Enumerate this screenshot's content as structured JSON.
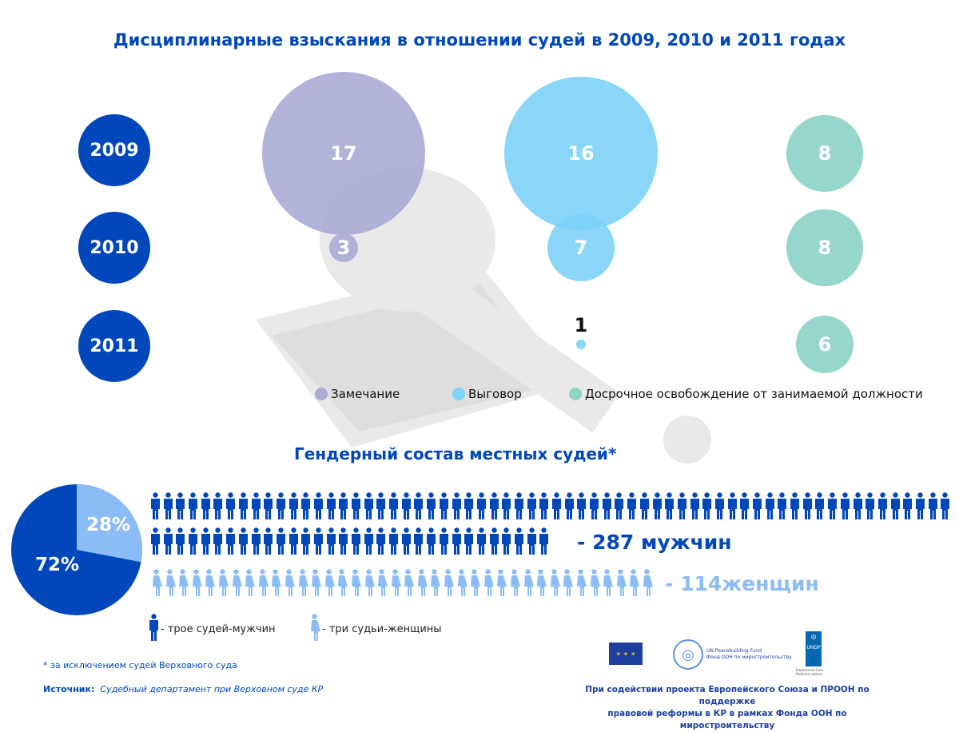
{
  "title": "Дисциплинарные взыскания в отношении судей в 2009, 2010 и 2011 годах",
  "colors": {
    "year": "#0047bb",
    "zamechanie": "#a9acd4",
    "vygovor": "#7fd3f7",
    "dosrochnoe": "#8dd3c7",
    "men": "#0047bb",
    "women": "#8cbcf5"
  },
  "chart_data": [
    {
      "type": "bubble",
      "title": "Дисциплинарные взыскания в отношении судей в 2009, 2010 и 2011 годах",
      "years": [
        "2009",
        "2010",
        "2011"
      ],
      "series": [
        {
          "name": "Замечание",
          "values": [
            17,
            3,
            null
          ]
        },
        {
          "name": "Выговор",
          "values": [
            16,
            7,
            1
          ]
        },
        {
          "name": "Досрочное освобождение от занимаемой должности",
          "values": [
            8,
            8,
            6
          ]
        }
      ],
      "legend": "bottom"
    },
    {
      "type": "pie",
      "title": "Гендерный состав местных судей*",
      "categories": [
        "мужчины",
        "женщины"
      ],
      "values": [
        72,
        28
      ],
      "labels": [
        "72%",
        "28%"
      ]
    }
  ],
  "gender": {
    "men_label": "- 287 мужчин",
    "women_label": "- 114женщин",
    "men_icons": 96,
    "women_icons": 38,
    "legend_men": "- трое судей-мужчин",
    "legend_women": "- три судьи-женщины"
  },
  "footnote": "* за исключением судей Верховного суда",
  "source_label": "Источник:",
  "source_text": "Судебный департамент при Верховном суде КР",
  "logos": {
    "un_fund": "UN Peacebuilding Fund",
    "un_fund_ru": "Фонд ООН по миростроительству",
    "undp": "UNDP",
    "undp_tag": "Empowered lives. Resilient nations."
  },
  "support_text_1": "При содействии проекта Европейского Союза и ПРООН по поддержке",
  "support_text_2": "правовой реформы в КР в рамках Фонда ООН по миростроительству"
}
